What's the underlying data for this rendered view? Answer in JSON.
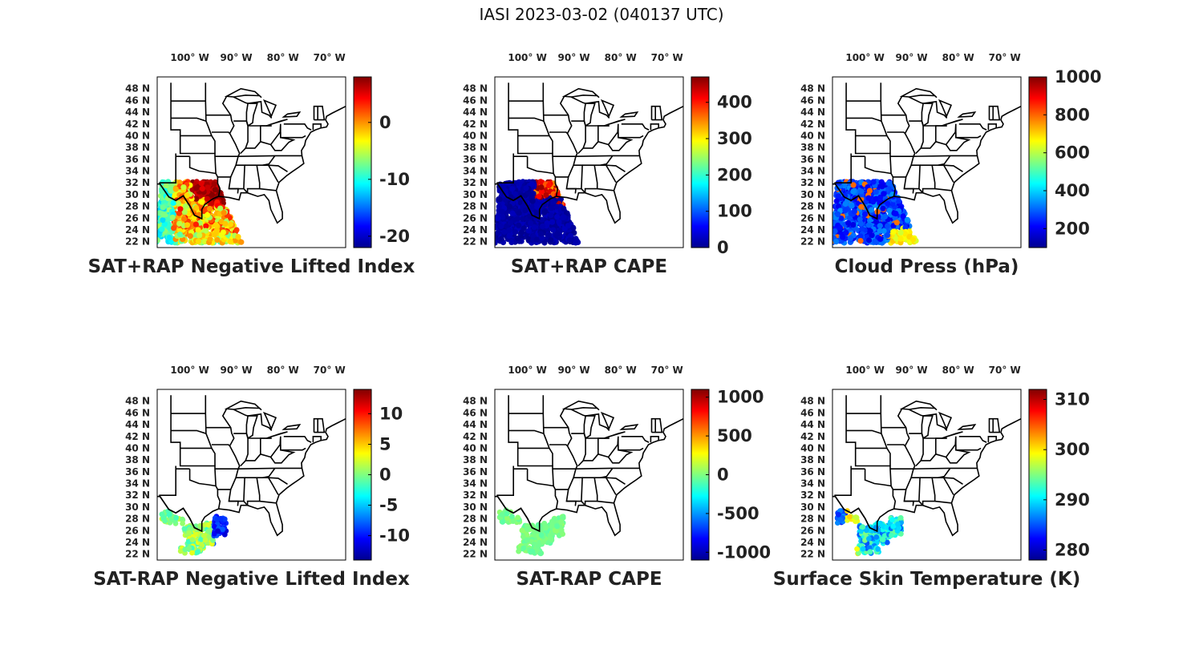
{
  "figure_title": "IASI 2023-03-02 (040137 UTC)",
  "colormap": [
    "#00008f",
    "#0000ff",
    "#0080ff",
    "#00ffff",
    "#80ff80",
    "#ffff00",
    "#ff8000",
    "#ff0000",
    "#800000"
  ],
  "chart_data": [
    {
      "type": "scatter",
      "title": "SAT+RAP Negative Lifted Index",
      "lon_ticks": [
        "100° W",
        "90° W",
        "80° W",
        "70° W"
      ],
      "lat_ticks": [
        "22 N",
        "24 N",
        "26 N",
        "28 N",
        "30 N",
        "32 N",
        "34 N",
        "36 N",
        "38 N",
        "40 N",
        "42 N",
        "44 N",
        "46 N",
        "48 N"
      ],
      "colorbar": {
        "ticks": [
          "-20",
          "-10",
          "0"
        ],
        "range": [
          -22,
          8
        ]
      },
      "swath": "full",
      "pattern": "nli_sum"
    },
    {
      "type": "scatter",
      "title": "SAT+RAP CAPE",
      "lon_ticks": [
        "100° W",
        "90° W",
        "80° W",
        "70° W"
      ],
      "lat_ticks": [
        "22 N",
        "24 N",
        "26 N",
        "28 N",
        "30 N",
        "32 N",
        "34 N",
        "36 N",
        "38 N",
        "40 N",
        "42 N",
        "44 N",
        "46 N",
        "48 N"
      ],
      "colorbar": {
        "ticks": [
          "0",
          "100",
          "200",
          "300",
          "400"
        ],
        "range": [
          0,
          470
        ]
      },
      "swath": "full",
      "pattern": "cape_sum"
    },
    {
      "type": "scatter",
      "title": "Cloud Press (hPa)",
      "lon_ticks": [
        "100° W",
        "90° W",
        "80° W",
        "70° W"
      ],
      "lat_ticks": [
        "22 N",
        "24 N",
        "26 N",
        "28 N",
        "30 N",
        "32 N",
        "34 N",
        "36 N",
        "38 N",
        "40 N",
        "42 N",
        "44 N",
        "46 N",
        "48 N"
      ],
      "colorbar": {
        "ticks": [
          "200",
          "400",
          "600",
          "800",
          "1000"
        ],
        "range": [
          100,
          1000
        ]
      },
      "swath": "full",
      "pattern": "cloud"
    },
    {
      "type": "scatter",
      "title": "SAT-RAP Negative Lifted Index",
      "lon_ticks": [
        "100° W",
        "90° W",
        "80° W",
        "70° W"
      ],
      "lat_ticks": [
        "22 N",
        "24 N",
        "26 N",
        "28 N",
        "30 N",
        "32 N",
        "34 N",
        "36 N",
        "38 N",
        "40 N",
        "42 N",
        "44 N",
        "46 N",
        "48 N"
      ],
      "colorbar": {
        "ticks": [
          "-10",
          "-5",
          "0",
          "5",
          "10"
        ],
        "range": [
          -14,
          14
        ]
      },
      "swath": "sparse",
      "pattern": "nli_diff"
    },
    {
      "type": "scatter",
      "title": "SAT-RAP CAPE",
      "lon_ticks": [
        "100° W",
        "90° W",
        "80° W",
        "70° W"
      ],
      "lat_ticks": [
        "22 N",
        "24 N",
        "26 N",
        "28 N",
        "30 N",
        "32 N",
        "34 N",
        "36 N",
        "38 N",
        "40 N",
        "42 N",
        "44 N",
        "46 N",
        "48 N"
      ],
      "colorbar": {
        "ticks": [
          "-1000",
          "-500",
          "0",
          "500",
          "1000"
        ],
        "range": [
          -1100,
          1100
        ]
      },
      "swath": "sparse",
      "pattern": "cape_diff"
    },
    {
      "type": "scatter",
      "title": "Surface Skin Temperature (K)",
      "lon_ticks": [
        "100° W",
        "90° W",
        "80° W",
        "70° W"
      ],
      "lat_ticks": [
        "22 N",
        "24 N",
        "26 N",
        "28 N",
        "30 N",
        "32 N",
        "34 N",
        "36 N",
        "38 N",
        "40 N",
        "42 N",
        "44 N",
        "46 N",
        "48 N"
      ],
      "colorbar": {
        "ticks": [
          "280",
          "290",
          "300",
          "310"
        ],
        "range": [
          278,
          312
        ]
      },
      "swath": "sparse",
      "pattern": "skin"
    }
  ]
}
